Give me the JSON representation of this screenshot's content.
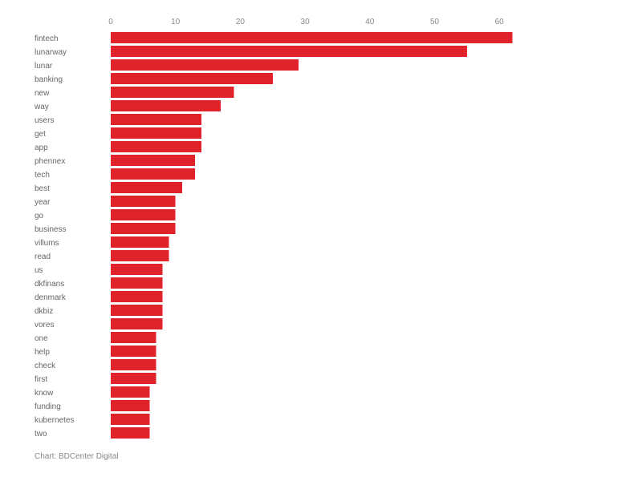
{
  "chart_data": {
    "type": "bar",
    "orientation": "horizontal",
    "categories": [
      "fintech",
      "lunarway",
      "lunar",
      "banking",
      "new",
      "way",
      "users",
      "get",
      "app",
      "phennex",
      "tech",
      "best",
      "year",
      "go",
      "business",
      "villums",
      "read",
      "us",
      "dkfinans",
      "denmark",
      "dkbiz",
      "vores",
      "one",
      "help",
      "check",
      "first",
      "know",
      "funding",
      "kubernetes",
      "two"
    ],
    "values": [
      62,
      55,
      29,
      25,
      19,
      17,
      14,
      14,
      14,
      13,
      13,
      11,
      10,
      10,
      10,
      9,
      9,
      8,
      8,
      8,
      8,
      8,
      7,
      7,
      7,
      7,
      6,
      6,
      6,
      6
    ],
    "x_ticks": [
      0,
      10,
      20,
      30,
      40,
      50,
      60
    ],
    "xlim": [
      0,
      62
    ],
    "axis_position": "top",
    "grid": false,
    "title": "",
    "xlabel": "",
    "ylabel": "",
    "bar_color": "#e0232b"
  },
  "credit": "Chart: BDCenter Digital"
}
